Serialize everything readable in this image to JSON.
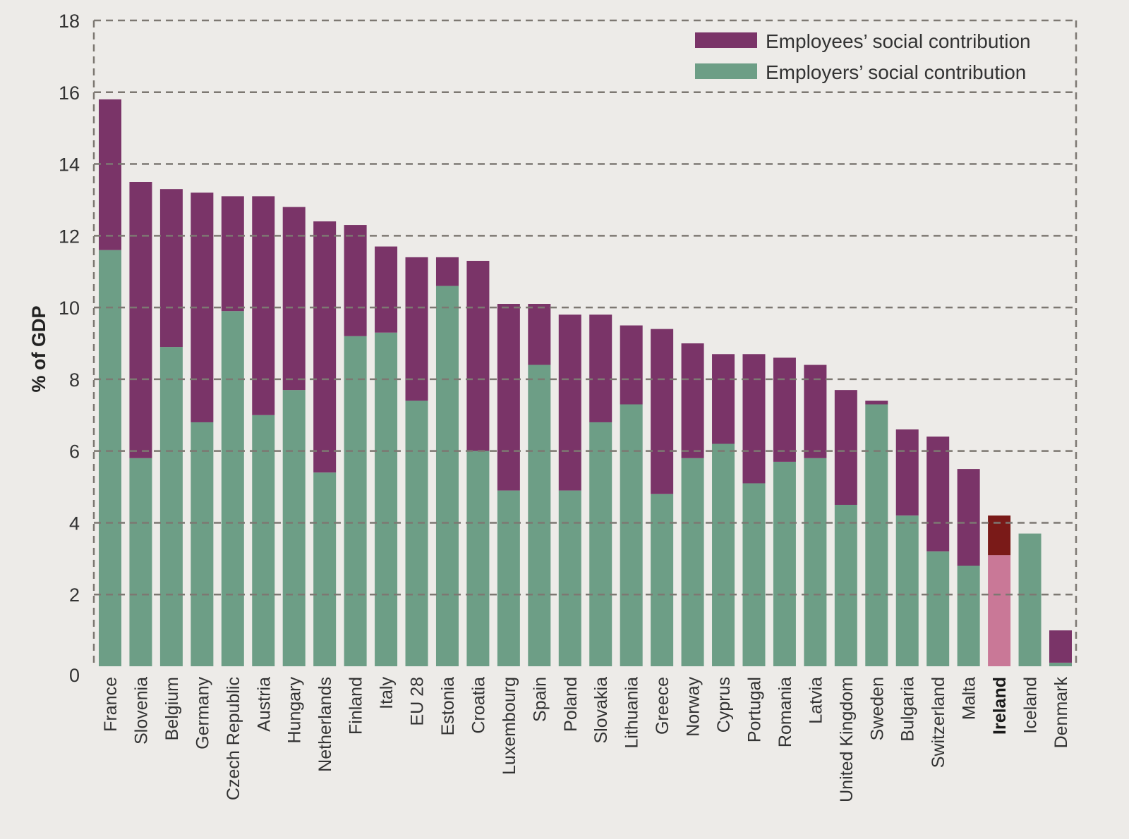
{
  "chart_data": {
    "type": "bar",
    "stacked": true,
    "title": "",
    "xlabel": "",
    "ylabel": "% of GDP",
    "ylim": [
      0,
      18
    ],
    "yticks": [
      0,
      2,
      4,
      6,
      8,
      10,
      12,
      14,
      16,
      18
    ],
    "grid": true,
    "legend_position": "top-right",
    "highlight_category": "Ireland",
    "categories": [
      "France",
      "Slovenia",
      "Belgium",
      "Germany",
      "Czech Republic",
      "Austria",
      "Hungary",
      "Netherlands",
      "Finland",
      "Italy",
      "EU 28",
      "Estonia",
      "Croatia",
      "Luxembourg",
      "Spain",
      "Poland",
      "Slovakia",
      "Lithuania",
      "Greece",
      "Norway",
      "Cyprus",
      "Portugal",
      "Romania",
      "Latvia",
      "United Kingdom",
      "Sweden",
      "Bulgaria",
      "Switzerland",
      "Malta",
      "Ireland",
      "Iceland",
      "Denmark"
    ],
    "series": [
      {
        "name": "Employers’ social contribution",
        "color": "#6d9e86",
        "highlight_color": "#c97897",
        "values": [
          11.6,
          5.8,
          8.9,
          6.8,
          9.9,
          7.0,
          7.7,
          5.4,
          9.2,
          9.3,
          7.4,
          10.6,
          6.0,
          4.9,
          8.4,
          4.9,
          6.8,
          7.3,
          4.8,
          5.8,
          6.2,
          5.1,
          5.7,
          5.8,
          4.5,
          7.3,
          4.2,
          3.2,
          2.8,
          3.1,
          3.7,
          0.1
        ]
      },
      {
        "name": "Employees’ social contribution",
        "color": "#7a3468",
        "highlight_color": "#7a1a18",
        "values": [
          4.2,
          7.7,
          4.4,
          6.4,
          3.2,
          6.1,
          5.1,
          7.0,
          3.1,
          2.4,
          4.0,
          0.8,
          5.3,
          5.2,
          1.7,
          4.9,
          3.0,
          2.2,
          4.6,
          3.2,
          2.5,
          3.6,
          2.9,
          2.6,
          3.2,
          0.1,
          2.4,
          3.2,
          2.7,
          1.1,
          0.0,
          0.9
        ]
      }
    ]
  }
}
